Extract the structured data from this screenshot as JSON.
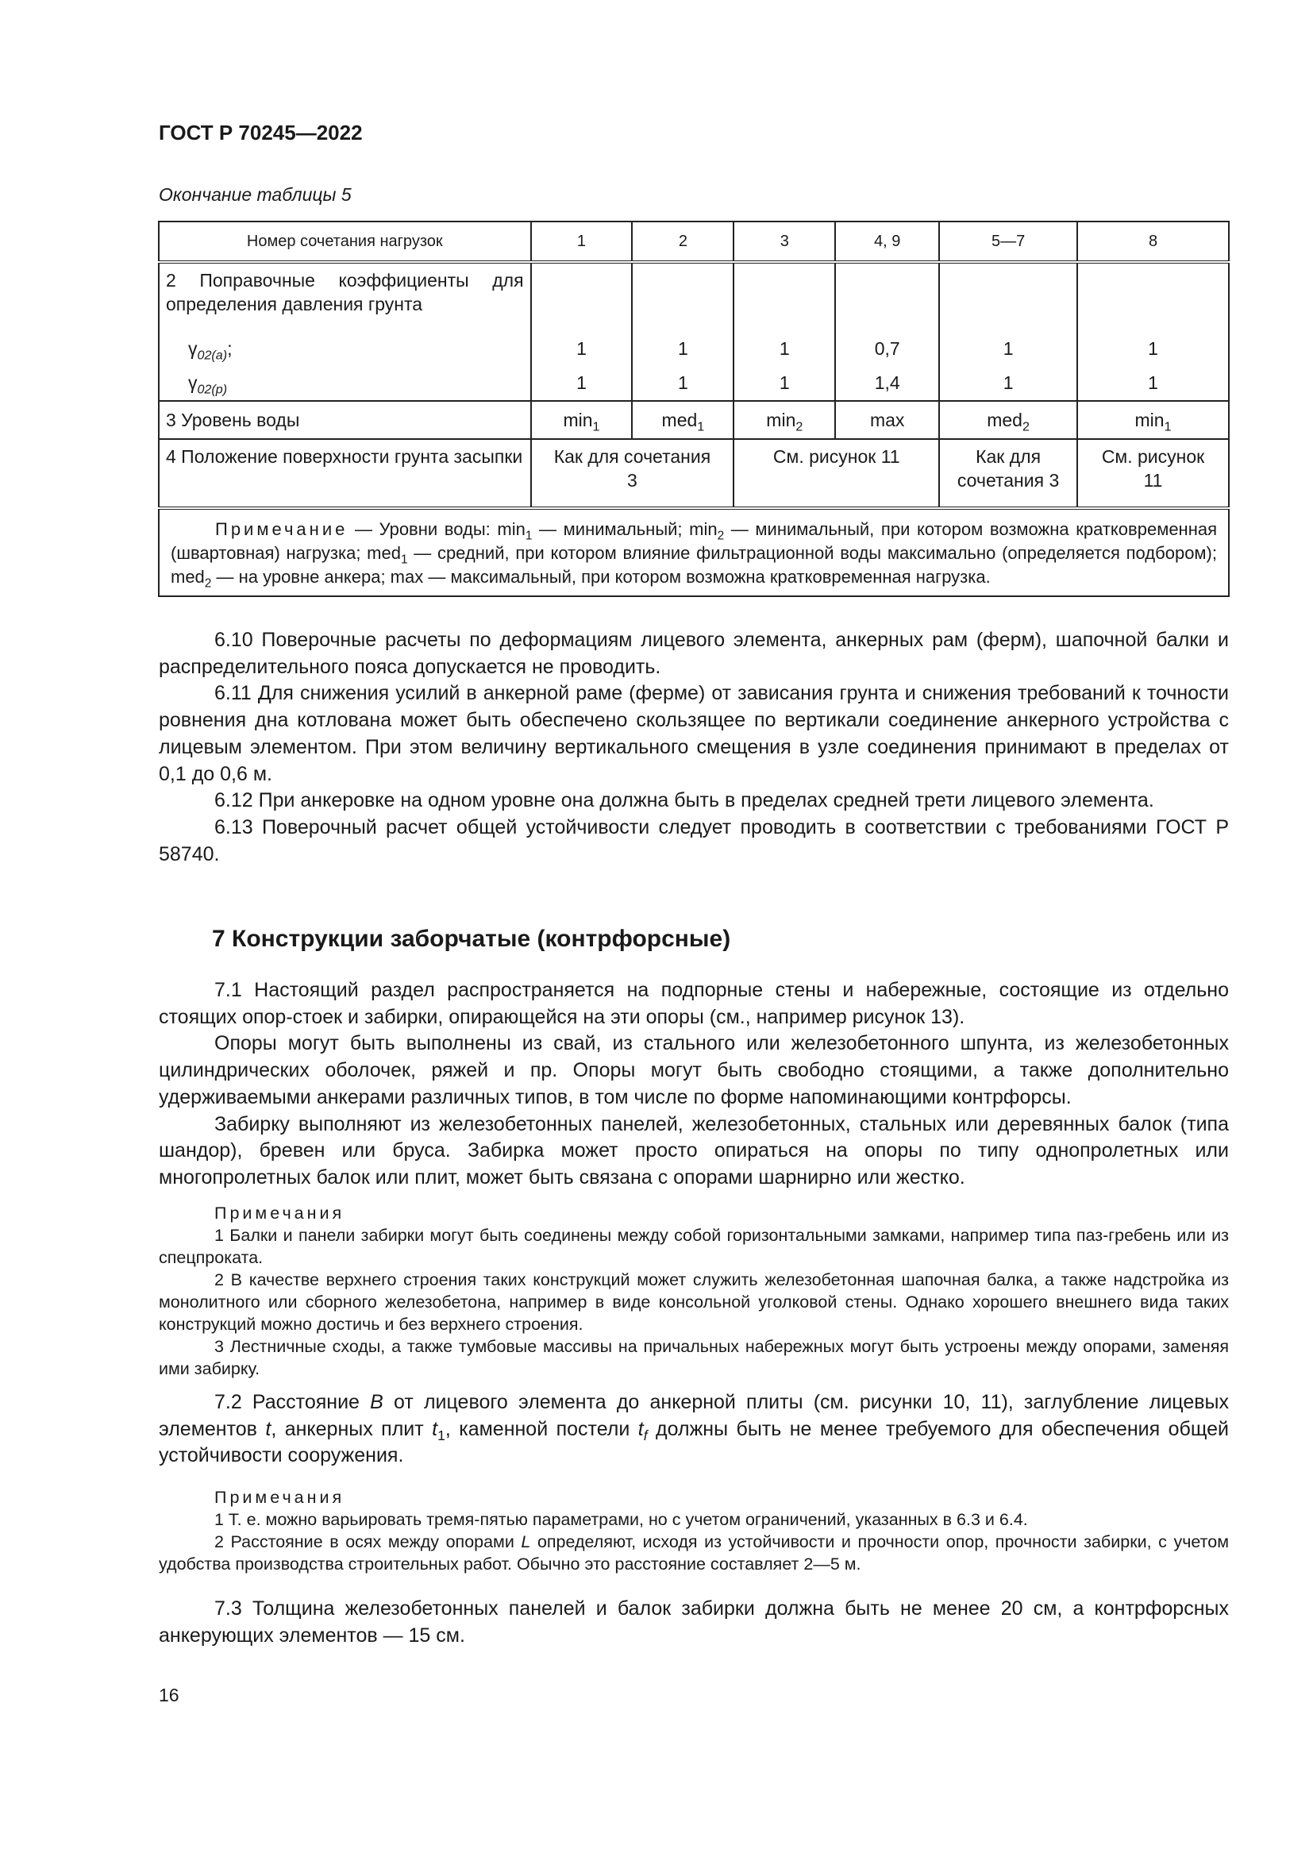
{
  "header": {
    "doc_id": "ГОСТ Р 70245—2022"
  },
  "table_caption": "Окончание таблицы 5",
  "table": {
    "header": [
      "Номер сочетания нагрузок",
      "1",
      "2",
      "3",
      "4, 9",
      "5—7",
      "8"
    ],
    "row2": {
      "label": "2 Поправочные коэффициенты для определения давления грунта",
      "gamma_a": {
        "sym": "γ",
        "sub": "02(a)",
        "suffix": ";"
      },
      "gamma_p": {
        "sym": "γ",
        "sub": "02(p)"
      },
      "values_a": [
        "1",
        "1",
        "1",
        "0,7",
        "1",
        "1"
      ],
      "values_p": [
        "1",
        "1",
        "1",
        "1,4",
        "1",
        "1"
      ]
    },
    "row3": {
      "label": "3 Уровень воды",
      "cells": [
        {
          "t": "min",
          "s": "1"
        },
        {
          "t": "med",
          "s": "1"
        },
        {
          "t": "min",
          "s": "2"
        },
        {
          "t": "max",
          "s": ""
        },
        {
          "t": "med",
          "s": "2"
        },
        {
          "t": "min",
          "s": "1"
        }
      ]
    },
    "row4": {
      "label": "4 Положение поверхности грунта засыпки",
      "cells": [
        "Как для сочетания 3",
        "См. рисунок 11",
        "Как для сочетания 3",
        "См. рисунок 11"
      ]
    },
    "note": [
      "Примечание",
      " — Уровни воды: min",
      "1",
      " — минимальный; min",
      "2",
      " — минимальный, при котором возможна кратковременная (швартовная) нагрузка; med",
      "1",
      " — средний, при котором влияние фильтрационной воды максимально (определяется подбором); med",
      "2",
      " — на уровне анкера; max — максимальный, при котором возможна кратковременная нагрузка."
    ]
  },
  "section6": [
    "6.10 Поверочные расчеты по деформациям лицевого элемента, анкерных рам (ферм), шапочной балки и распределительного пояса допускается не проводить.",
    "6.11 Для снижения усилий в анкерной раме (ферме) от зависания грунта и снижения требований к точности ровнения дна котлована может быть обеспечено скользящее по вертикали соединение анкерного устройства с лицевым элементом. При этом величину вертикального смещения в узле соединения принимают в пределах от 0,1 до 0,6 м.",
    "6.12 При анкеровке на одном уровне она должна быть в пределах средней трети лицевого элемента.",
    "6.13 Поверочный расчет общей устойчивости следует проводить в соответствии с требованиями ГОСТ Р 58740."
  ],
  "section7": {
    "title": "7 Конструкции заборчатые (контрфорсные)",
    "p1": [
      "7.1 Настоящий раздел распространяется на подпорные стены и набережные, состоящие из отдельно стоящих опор-стоек и забирки, опирающейся на эти опоры (см., например рисунок 13).",
      "Опоры могут быть выполнены из свай, из стального или железобетонного шпунта, из железобетонных цилиндрических оболочек, ряжей и пр. Опоры могут быть свободно стоящими, а также дополнительно удерживаемыми анкерами различных типов, в том числе по форме напоминающими контрфорсы.",
      "Забирку выполняют из железобетонных панелей, железобетонных, стальных или деревянных балок (типа шандор), бревен или бруса. Забирка может просто опираться на опоры по типу однопролетных или многопролетных балок или плит, может быть связана с опорами шарнирно или жестко."
    ],
    "notes1_title": "Примечания",
    "notes1": [
      "1 Балки и панели забирки могут быть соединены между собой горизонтальными замками, например типа паз-гребень или из спецпроката.",
      "2 В качестве верхнего строения таких конструкций может служить железобетонная шапочная балка, а также надстройка из монолитного или сборного железобетона, например в виде консольной уголковой стены. Однако хорошего внешнего вида таких конструкций можно достичь и без верхнего строения.",
      "3 Лестничные сходы, а также тумбовые массивы на причальных набережных могут быть устроены между опорами, заменяя ими забирку."
    ],
    "p2": [
      "7.2 Расстояние ",
      "B",
      " от лицевого элемента до анкерной плиты (см. рисунки 10, 11), заглубление лицевых элементов ",
      "t",
      ", анкерных плит ",
      "t",
      "1",
      ", каменной постели ",
      "t",
      "f",
      " должны быть не менее требуемого для обеспечения общей устойчивости сооружения."
    ],
    "notes2_title": "Примечания",
    "notes2": [
      [
        "1 Т. е. можно варьировать тремя-пятью параметрами, но с учетом ограничений, указанных в 6.3 и 6.4."
      ],
      [
        "2 Расстояние в осях между опорами ",
        "L",
        " определяют, исходя из устойчивости и прочности опор, прочности забирки, с учетом удобства производства строительных работ.  Обычно это расстояние составляет 2—5 м."
      ]
    ],
    "p3": "7.3 Толщина железобетонных панелей и балок забирки должна быть не менее 20 см, а контрфорсных анкерующих элементов — 15 см."
  },
  "page_number": "16"
}
